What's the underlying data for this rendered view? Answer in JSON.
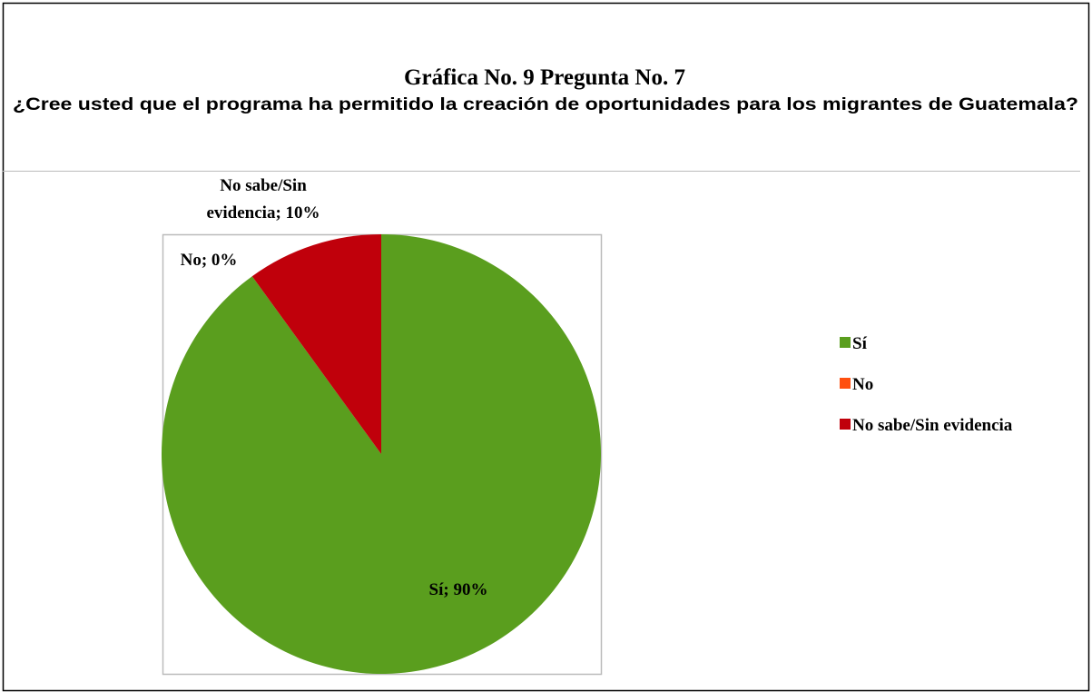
{
  "chart_data": {
    "type": "pie",
    "title": "Gráfica No. 9  Pregunta No. 7",
    "subtitle": "¿Cree usted que el programa ha permitido la creación de oportunidades para los migrantes de Guatemala?",
    "categories": [
      "Sí",
      "No",
      "No sabe/Sin evidencia"
    ],
    "values": [
      90,
      0,
      10
    ],
    "value_labels": [
      "Sí; 90%",
      "No; 0%",
      "No sabe/Sin evidencia; 10%"
    ],
    "colors": [
      "#5a9e1e",
      "#ff5010",
      "#c0000b"
    ],
    "legend": "right"
  }
}
